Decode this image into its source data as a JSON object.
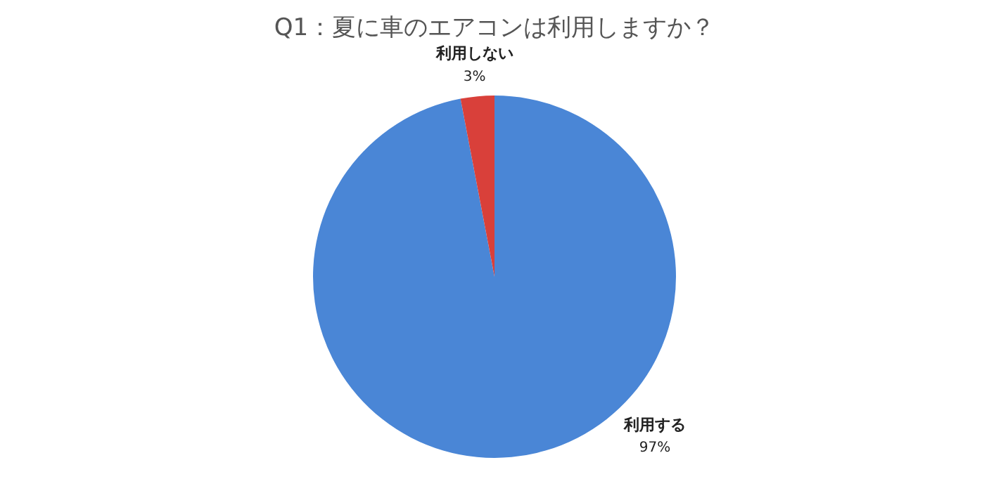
{
  "chart_data": {
    "type": "pie",
    "title": "Q1：夏に車のエアコンは利用しますか？",
    "categories": [
      "利用する",
      "利用しない"
    ],
    "values": [
      97,
      3
    ],
    "value_labels": [
      "97%",
      "3%"
    ],
    "colors": [
      "#4a86d6",
      "#d9403a"
    ],
    "legend": false
  }
}
